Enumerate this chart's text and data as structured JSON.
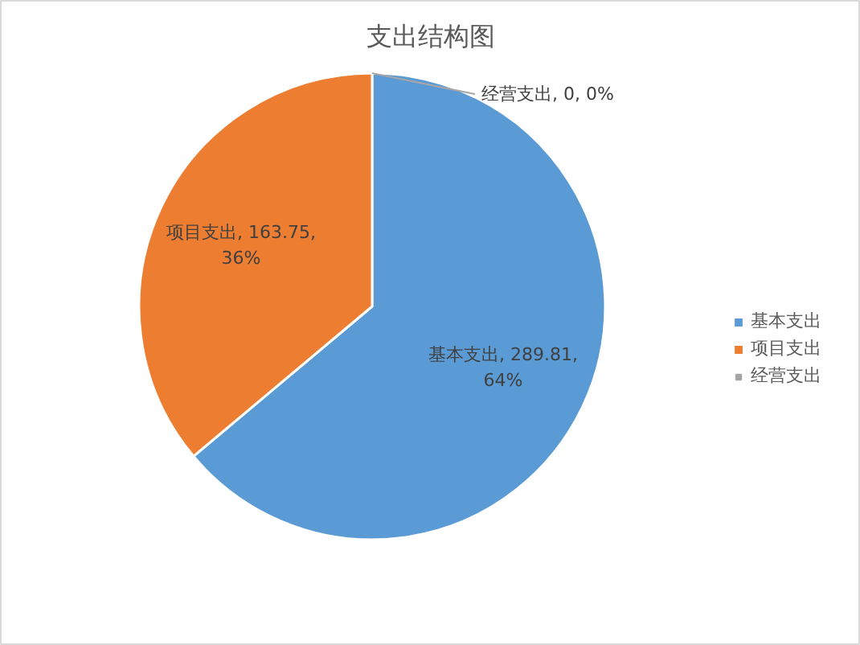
{
  "chart_data": {
    "type": "pie",
    "title": "支出结构图",
    "categories": [
      "基本支出",
      "项目支出",
      "经营支出"
    ],
    "values": [
      289.81,
      163.75,
      0
    ],
    "colors": [
      "#5b9bd5",
      "#ed7d31",
      "#a5a5a5"
    ],
    "value_labels": [
      "基本支出, 289.81, 64%",
      "项目支出, 163.75, 36%",
      "经营支出, 0, 0%"
    ],
    "legend": "right"
  }
}
